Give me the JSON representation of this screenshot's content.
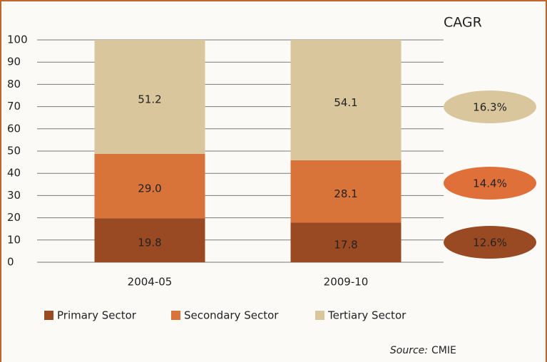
{
  "chart_data": {
    "type": "stacked_bar",
    "categories": [
      "2004-05",
      "2009-10"
    ],
    "series": [
      {
        "name": "Primary Sector",
        "color": "#9a4a22",
        "label_color": "#ffffff",
        "values": [
          19.8,
          17.8
        ],
        "value_labels": [
          "19.8",
          "17.8"
        ]
      },
      {
        "name": "Secondary Sector",
        "color": "#d8733a",
        "label_color": "#ffffff",
        "values": [
          29.0,
          28.1
        ],
        "value_labels": [
          "29.0",
          "28.1"
        ]
      },
      {
        "name": "Tertiary Sector",
        "color": "#d9c69c",
        "label_color": "#222222",
        "values": [
          51.2,
          54.1
        ],
        "value_labels": [
          "51.2",
          "54.1"
        ]
      }
    ],
    "ylim": [
      0,
      100
    ],
    "yticks": [
      0,
      10,
      20,
      30,
      40,
      50,
      60,
      70,
      80,
      90,
      100
    ],
    "grid": true,
    "cagr": {
      "title": "CAGR",
      "items": [
        {
          "value": 16.3,
          "label": "16.3%",
          "color": "#d9c69c",
          "text_color": "#222222"
        },
        {
          "value": 14.4,
          "label": "14.4%",
          "color": "#e0703a",
          "text_color": "#ffffff"
        },
        {
          "value": 12.6,
          "label": "12.6%",
          "color": "#9a4a22",
          "text_color": "#ffffff"
        }
      ]
    },
    "source_label": "Source:",
    "source": "CMIE"
  }
}
